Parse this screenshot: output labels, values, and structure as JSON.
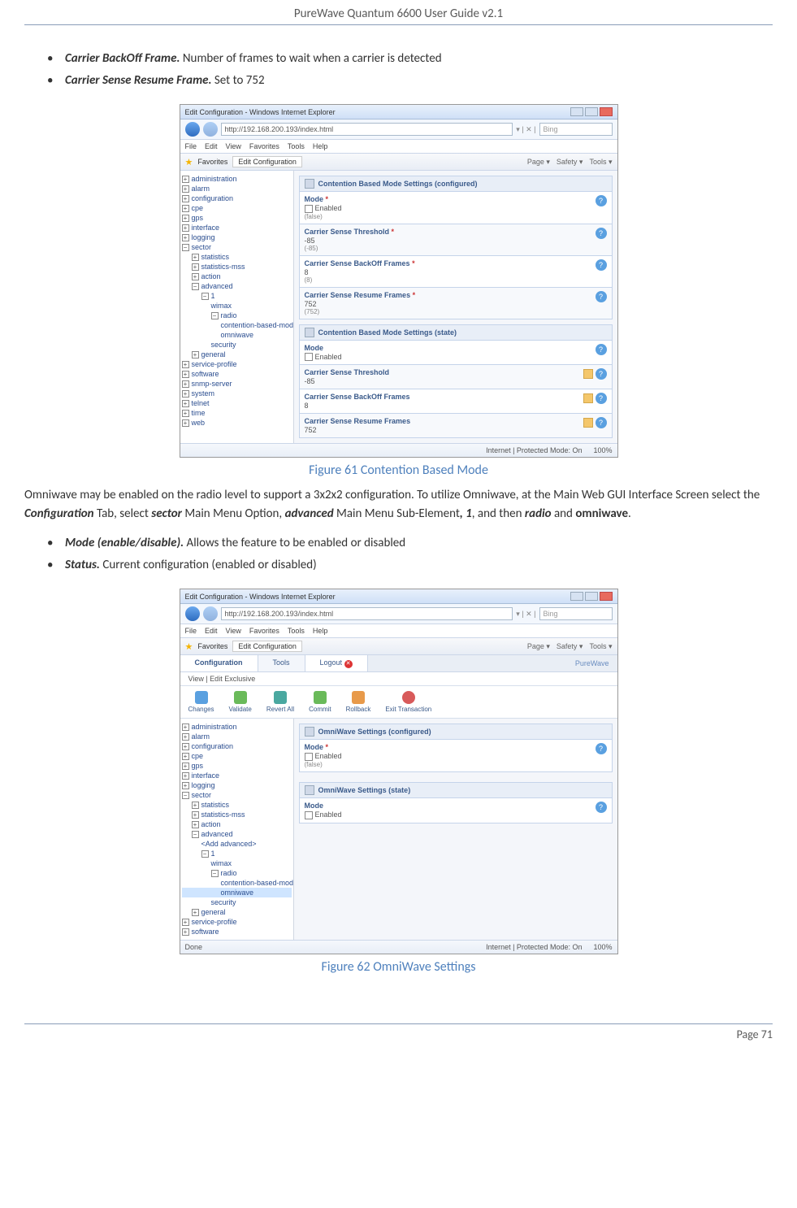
{
  "header": {
    "title": "PureWave Quantum 6600 User Guide v2.1"
  },
  "bullets1": [
    {
      "term": "Carrier BackOff Frame.",
      "text": " Number of frames to wait when a carrier is detected"
    },
    {
      "term": "Carrier Sense Resume Frame.",
      "text": " Set to 752"
    }
  ],
  "fig1": {
    "winTitle": "Edit Configuration - Windows Internet Explorer",
    "url": "http://192.168.200.193/index.html",
    "searchPlaceholder": "Bing",
    "menus": [
      "File",
      "Edit",
      "View",
      "Favorites",
      "Tools",
      "Help"
    ],
    "favLabel": "Favorites",
    "tabLabel": "Edit Configuration",
    "favRight": [
      "Page ▾",
      "Safety ▾",
      "Tools ▾"
    ],
    "tree": [
      {
        "lvl": 0,
        "exp": "+",
        "label": "administration"
      },
      {
        "lvl": 0,
        "exp": "+",
        "label": "alarm"
      },
      {
        "lvl": 0,
        "exp": "+",
        "label": "configuration"
      },
      {
        "lvl": 0,
        "exp": "+",
        "label": "cpe"
      },
      {
        "lvl": 0,
        "exp": "+",
        "label": "gps"
      },
      {
        "lvl": 0,
        "exp": "+",
        "label": "interface"
      },
      {
        "lvl": 0,
        "exp": "+",
        "label": "logging"
      },
      {
        "lvl": 0,
        "exp": "−",
        "label": "sector"
      },
      {
        "lvl": 1,
        "exp": "+",
        "label": "statistics"
      },
      {
        "lvl": 1,
        "exp": "+",
        "label": "statistics-mss"
      },
      {
        "lvl": 1,
        "exp": "+",
        "label": "action"
      },
      {
        "lvl": 1,
        "exp": "−",
        "label": "advanced"
      },
      {
        "lvl": 2,
        "exp": "−",
        "label": "1"
      },
      {
        "lvl": 3,
        "exp": "",
        "label": "wimax"
      },
      {
        "lvl": 3,
        "exp": "−",
        "label": "radio"
      },
      {
        "lvl": 4,
        "exp": "",
        "label": "contention-based-mode"
      },
      {
        "lvl": 4,
        "exp": "",
        "label": "omniwave"
      },
      {
        "lvl": 3,
        "exp": "",
        "label": "security"
      },
      {
        "lvl": 1,
        "exp": "+",
        "label": "general"
      },
      {
        "lvl": 0,
        "exp": "+",
        "label": "service-profile"
      },
      {
        "lvl": 0,
        "exp": "+",
        "label": "software"
      },
      {
        "lvl": 0,
        "exp": "+",
        "label": "snmp-server"
      },
      {
        "lvl": 0,
        "exp": "+",
        "label": "system"
      },
      {
        "lvl": 0,
        "exp": "+",
        "label": "telnet"
      },
      {
        "lvl": 0,
        "exp": "+",
        "label": "time"
      },
      {
        "lvl": 0,
        "exp": "+",
        "label": "web"
      }
    ],
    "panel1": "Contention Based Mode Settings (configured)",
    "fields1": [
      {
        "label": "Mode",
        "req": true,
        "val": "Enabled",
        "sub": "(false)",
        "chk": true
      },
      {
        "label": "Carrier Sense Threshold",
        "req": true,
        "val": "-85",
        "sub": "(-85)"
      },
      {
        "label": "Carrier Sense BackOff Frames",
        "req": true,
        "val": "8",
        "sub": "(8)"
      },
      {
        "label": "Carrier Sense Resume Frames",
        "req": true,
        "val": "752",
        "sub": "(752)"
      }
    ],
    "panel2": "Contention Based Mode Settings (state)",
    "fields2": [
      {
        "label": "Mode",
        "val": "Enabled",
        "chk": true,
        "chart": false
      },
      {
        "label": "Carrier Sense Threshold",
        "val": "-85",
        "chart": true
      },
      {
        "label": "Carrier Sense BackOff Frames",
        "val": "8",
        "chart": true
      },
      {
        "label": "Carrier Sense Resume Frames",
        "val": "752",
        "chart": true
      }
    ],
    "status": {
      "mode": "Internet | Protected Mode: On",
      "zoom": "100%"
    },
    "caption": "Figure 61 Contention Based Mode"
  },
  "para1": {
    "t1": "Omniwave may be enabled on the radio level to support a 3x2x2 configuration.  To utilize Omniwave, at the Main Web GUI Interface Screen select the ",
    "b1": "Configuration",
    "t2": " Tab, select ",
    "b2": "sector",
    "t3": " Main Menu Option, ",
    "b3": "advanced",
    "t4": " Main Menu Sub-Element",
    "b4": ", 1",
    "t5": ", and then ",
    "b5": "radio",
    "t6": " and ",
    "b6": "omniwave",
    "t7": "."
  },
  "bullets2": [
    {
      "term": "Mode (enable/disable).",
      "text": "  Allows the feature to be enabled or disabled"
    },
    {
      "term": "Status.",
      "text": " Current configuration (enabled or disabled)"
    }
  ],
  "fig2": {
    "winTitle": "Edit Configuration - Windows Internet Explorer",
    "url": "http://192.168.200.193/index.html",
    "searchPlaceholder": "Bing",
    "menus": [
      "File",
      "Edit",
      "View",
      "Favorites",
      "Tools",
      "Help"
    ],
    "favLabel": "Favorites",
    "tabLabel": "Edit Configuration",
    "favRight": [
      "Page ▾",
      "Safety ▾",
      "Tools ▾"
    ],
    "tabs": {
      "t1": "Configuration",
      "t2": "Tools",
      "t3": "Logout",
      "brand": "PureWave"
    },
    "subbar": "View | Edit Exclusive",
    "toolbar": [
      {
        "label": "Changes",
        "cls": "ic-blue"
      },
      {
        "label": "Validate",
        "cls": "ic-green"
      },
      {
        "label": "Revert All",
        "cls": "ic-teal"
      },
      {
        "label": "Commit",
        "cls": "ic-green"
      },
      {
        "label": "Rollback",
        "cls": "ic-orange"
      },
      {
        "label": "Exit Transaction",
        "cls": "ic-red"
      }
    ],
    "tree": [
      {
        "lvl": 0,
        "exp": "+",
        "label": "administration"
      },
      {
        "lvl": 0,
        "exp": "+",
        "label": "alarm"
      },
      {
        "lvl": 0,
        "exp": "+",
        "label": "configuration"
      },
      {
        "lvl": 0,
        "exp": "+",
        "label": "cpe"
      },
      {
        "lvl": 0,
        "exp": "+",
        "label": "gps"
      },
      {
        "lvl": 0,
        "exp": "+",
        "label": "interface"
      },
      {
        "lvl": 0,
        "exp": "+",
        "label": "logging"
      },
      {
        "lvl": 0,
        "exp": "−",
        "label": "sector"
      },
      {
        "lvl": 1,
        "exp": "+",
        "label": "statistics"
      },
      {
        "lvl": 1,
        "exp": "+",
        "label": "statistics-mss"
      },
      {
        "lvl": 1,
        "exp": "+",
        "label": "action"
      },
      {
        "lvl": 1,
        "exp": "−",
        "label": "advanced"
      },
      {
        "lvl": 2,
        "exp": "",
        "label": "<Add advanced>"
      },
      {
        "lvl": 2,
        "exp": "−",
        "label": "1"
      },
      {
        "lvl": 3,
        "exp": "",
        "label": "wimax"
      },
      {
        "lvl": 3,
        "exp": "−",
        "label": "radio"
      },
      {
        "lvl": 4,
        "exp": "",
        "label": "contention-based-mode"
      },
      {
        "lvl": 4,
        "exp": "",
        "label": "omniwave",
        "sel": true
      },
      {
        "lvl": 3,
        "exp": "",
        "label": "security"
      },
      {
        "lvl": 1,
        "exp": "+",
        "label": "general"
      },
      {
        "lvl": 0,
        "exp": "+",
        "label": "service-profile"
      },
      {
        "lvl": 0,
        "exp": "+",
        "label": "software"
      }
    ],
    "panel1": "OmniWave Settings (configured)",
    "fields1": [
      {
        "label": "Mode",
        "req": true,
        "val": "Enabled",
        "sub": "(false)",
        "chk": true
      }
    ],
    "panel2": "OmniWave Settings (state)",
    "fields2": [
      {
        "label": "Mode",
        "val": "Enabled",
        "chk": true
      }
    ],
    "statusLeft": "Done",
    "status": {
      "mode": "Internet | Protected Mode: On",
      "zoom": "100%"
    },
    "caption": "Figure 62 OmniWave Settings"
  },
  "footer": {
    "page": "Page 71"
  }
}
